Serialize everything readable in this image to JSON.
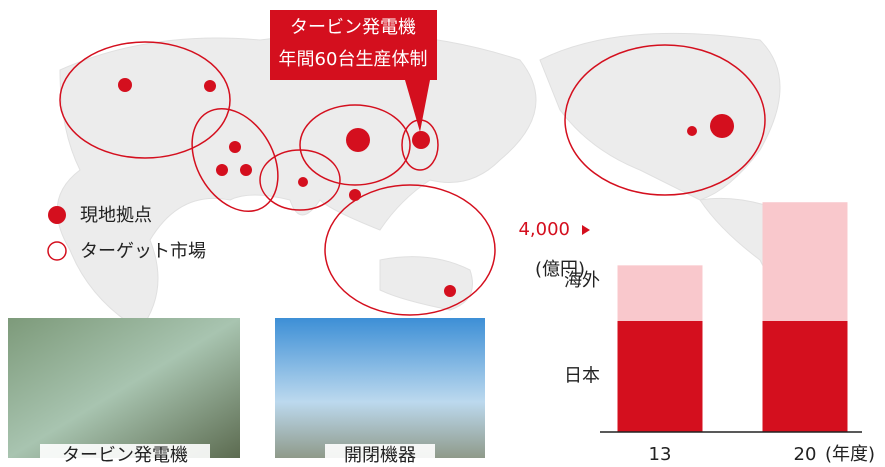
{
  "callout": {
    "lines": [
      "タービン発電機",
      "年間60台生産体制"
    ]
  },
  "legend": {
    "site": "現地拠点",
    "market": "ターゲット市場"
  },
  "photos": [
    {
      "caption": "タービン発電機"
    },
    {
      "caption": "開閉機器"
    }
  ],
  "chart_data": {
    "type": "bar",
    "stacked": true,
    "categories": [
      "13",
      "20"
    ],
    "series": [
      {
        "name": "日本",
        "color": "#d40f1e",
        "values": [
          2200,
          2200
        ]
      },
      {
        "name": "海外",
        "color": "#f9c8cc",
        "values": [
          1100,
          2350
        ]
      }
    ],
    "ylim": [
      0,
      4600
    ],
    "yticks": [
      {
        "value": 4000,
        "label": "4,000"
      }
    ],
    "y_label": "(億円)",
    "x_label": "(年度)"
  }
}
